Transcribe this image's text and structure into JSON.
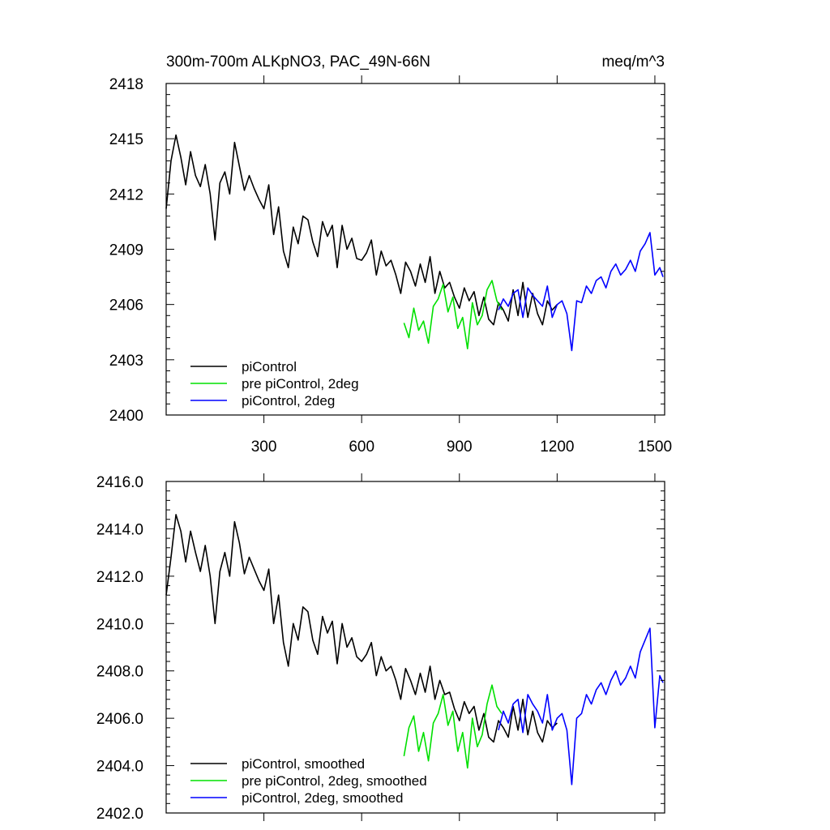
{
  "chart_data": [
    {
      "type": "line",
      "title_left": "300m-700m ALKpNO3, PAC_49N-66N",
      "title_right": "meq/m^3",
      "xlim": [
        0,
        1530
      ],
      "ylim": [
        2400,
        2418
      ],
      "x_ticks": [
        300,
        600,
        900,
        1200,
        1500
      ],
      "x_tick_labels": [
        "300",
        "600",
        "900",
        "1200",
        "1500"
      ],
      "y_ticks": [
        2400,
        2403,
        2406,
        2409,
        2412,
        2415,
        2418
      ],
      "y_tick_labels": [
        "2400",
        "2403",
        "2406",
        "2409",
        "2412",
        "2415",
        "2418"
      ],
      "legend_position": "bottom-left",
      "series": [
        {
          "name": "piControl",
          "color": "#000000",
          "x": [
            0,
            15,
            30,
            45,
            60,
            75,
            90,
            105,
            120,
            135,
            150,
            165,
            180,
            195,
            210,
            225,
            240,
            255,
            270,
            285,
            300,
            315,
            330,
            345,
            360,
            375,
            390,
            405,
            420,
            435,
            450,
            465,
            480,
            495,
            510,
            525,
            540,
            555,
            570,
            585,
            600,
            615,
            630,
            645,
            660,
            675,
            690,
            705,
            720,
            735,
            750,
            765,
            780,
            795,
            810,
            825,
            840,
            855,
            870,
            885,
            900,
            915,
            930,
            945,
            960,
            975,
            990,
            1005,
            1020,
            1035,
            1050,
            1065,
            1080,
            1095,
            1110,
            1125,
            1140,
            1155,
            1170,
            1185,
            1200
          ],
          "y": [
            2411.2,
            2413.8,
            2415.2,
            2414.0,
            2412.5,
            2414.3,
            2413.0,
            2412.4,
            2413.6,
            2412.0,
            2409.5,
            2412.6,
            2413.2,
            2412.0,
            2414.8,
            2413.5,
            2412.2,
            2413.0,
            2412.3,
            2411.7,
            2411.2,
            2412.5,
            2409.8,
            2411.3,
            2408.9,
            2408.0,
            2410.2,
            2409.3,
            2410.8,
            2410.6,
            2409.4,
            2408.6,
            2410.5,
            2409.7,
            2410.3,
            2408.0,
            2410.3,
            2409.0,
            2409.6,
            2408.5,
            2408.4,
            2408.8,
            2409.5,
            2407.6,
            2408.9,
            2408.1,
            2408.4,
            2407.6,
            2406.6,
            2408.3,
            2407.8,
            2407.0,
            2408.2,
            2407.2,
            2408.6,
            2406.6,
            2407.8,
            2406.9,
            2407.2,
            2406.4,
            2405.8,
            2406.9,
            2406.2,
            2406.7,
            2405.4,
            2406.4,
            2405.2,
            2404.9,
            2406.1,
            2405.7,
            2405.1,
            2406.8,
            2405.4,
            2407.2,
            2405.3,
            2406.6,
            2405.5,
            2404.9,
            2406.2,
            2405.7,
            2406.0
          ]
        },
        {
          "name": "pre piControl, 2deg",
          "color": "#00e000",
          "x": [
            730,
            745,
            760,
            775,
            790,
            805,
            820,
            835,
            850,
            865,
            880,
            895,
            910,
            925,
            940,
            955,
            970,
            985,
            1000,
            1015,
            1030
          ],
          "y": [
            2405.0,
            2404.2,
            2405.8,
            2404.6,
            2405.1,
            2403.9,
            2405.9,
            2406.3,
            2407.1,
            2405.6,
            2406.4,
            2404.7,
            2405.3,
            2403.6,
            2406.1,
            2404.9,
            2405.4,
            2406.8,
            2407.3,
            2406.2,
            2405.7
          ]
        },
        {
          "name": "piControl, 2deg",
          "color": "#0000ff",
          "x": [
            1020,
            1035,
            1050,
            1065,
            1080,
            1095,
            1110,
            1125,
            1140,
            1155,
            1170,
            1185,
            1200,
            1215,
            1230,
            1245,
            1260,
            1275,
            1290,
            1305,
            1320,
            1335,
            1350,
            1365,
            1380,
            1395,
            1410,
            1425,
            1440,
            1455,
            1470,
            1485,
            1500,
            1515,
            1525
          ],
          "y": [
            2405.7,
            2406.3,
            2405.9,
            2406.6,
            2406.8,
            2405.3,
            2406.9,
            2406.5,
            2406.2,
            2405.9,
            2407.0,
            2405.3,
            2406.0,
            2406.2,
            2405.5,
            2403.5,
            2406.2,
            2406.1,
            2407.0,
            2406.6,
            2407.3,
            2407.5,
            2406.9,
            2407.8,
            2408.2,
            2407.6,
            2407.9,
            2408.4,
            2407.8,
            2408.9,
            2409.3,
            2409.9,
            2407.6,
            2408.0,
            2407.5
          ]
        }
      ]
    },
    {
      "type": "line",
      "xlim": [
        0,
        1530
      ],
      "ylim": [
        2402.0,
        2416.0
      ],
      "x_ticks": [
        300,
        600,
        900,
        1200,
        1500
      ],
      "y_ticks": [
        2402.0,
        2404.0,
        2406.0,
        2408.0,
        2410.0,
        2412.0,
        2414.0,
        2416.0
      ],
      "y_tick_labels": [
        "2402.0",
        "2404.0",
        "2406.0",
        "2408.0",
        "2410.0",
        "2412.0",
        "2414.0",
        "2416.0"
      ],
      "legend_position": "bottom-left",
      "series": [
        {
          "name": "piControl, smoothed",
          "color": "#000000",
          "x": [
            0,
            15,
            30,
            45,
            60,
            75,
            90,
            105,
            120,
            135,
            150,
            165,
            180,
            195,
            210,
            225,
            240,
            255,
            270,
            285,
            300,
            315,
            330,
            345,
            360,
            375,
            390,
            405,
            420,
            435,
            450,
            465,
            480,
            495,
            510,
            525,
            540,
            555,
            570,
            585,
            600,
            615,
            630,
            645,
            660,
            675,
            690,
            705,
            720,
            735,
            750,
            765,
            780,
            795,
            810,
            825,
            840,
            855,
            870,
            885,
            900,
            915,
            930,
            945,
            960,
            975,
            990,
            1005,
            1020,
            1035,
            1050,
            1065,
            1080,
            1095,
            1110,
            1125,
            1140,
            1155,
            1170,
            1185,
            1200
          ],
          "y": [
            2411.2,
            2412.8,
            2414.6,
            2413.9,
            2412.6,
            2413.9,
            2413.0,
            2412.2,
            2413.3,
            2412.0,
            2410.0,
            2412.2,
            2413.0,
            2412.0,
            2414.3,
            2413.4,
            2412.1,
            2412.8,
            2412.3,
            2411.8,
            2411.4,
            2412.3,
            2410.0,
            2411.2,
            2409.2,
            2408.2,
            2410.0,
            2409.3,
            2410.7,
            2410.5,
            2409.3,
            2408.7,
            2410.3,
            2409.6,
            2410.1,
            2408.3,
            2410.0,
            2409.0,
            2409.4,
            2408.6,
            2408.4,
            2408.7,
            2409.2,
            2407.8,
            2408.6,
            2408.0,
            2408.2,
            2407.6,
            2406.8,
            2408.1,
            2407.6,
            2407.0,
            2407.9,
            2407.1,
            2408.2,
            2406.8,
            2407.6,
            2407.0,
            2407.1,
            2406.4,
            2405.9,
            2406.7,
            2406.2,
            2406.5,
            2405.5,
            2406.2,
            2405.2,
            2405.0,
            2405.9,
            2405.6,
            2405.2,
            2406.5,
            2405.5,
            2406.8,
            2405.3,
            2406.3,
            2405.4,
            2405.0,
            2405.9,
            2405.6,
            2405.8
          ]
        },
        {
          "name": "pre piControl, 2deg, smoothed",
          "color": "#00e000",
          "x": [
            730,
            745,
            760,
            775,
            790,
            805,
            820,
            835,
            850,
            865,
            880,
            895,
            910,
            925,
            940,
            955,
            970,
            985,
            1000,
            1015,
            1030
          ],
          "y": [
            2404.4,
            2405.6,
            2406.1,
            2404.6,
            2405.4,
            2404.2,
            2405.8,
            2406.2,
            2407.0,
            2405.7,
            2406.3,
            2404.6,
            2405.4,
            2403.9,
            2406.0,
            2404.8,
            2405.3,
            2406.6,
            2407.4,
            2406.5,
            2406.2
          ]
        },
        {
          "name": "piControl, 2deg, smoothed",
          "color": "#0000ff",
          "x": [
            1020,
            1035,
            1050,
            1065,
            1080,
            1095,
            1110,
            1125,
            1140,
            1155,
            1170,
            1185,
            1200,
            1215,
            1230,
            1245,
            1260,
            1275,
            1290,
            1305,
            1320,
            1335,
            1350,
            1365,
            1380,
            1395,
            1410,
            1425,
            1440,
            1455,
            1470,
            1485,
            1500,
            1515,
            1525
          ],
          "y": [
            2405.5,
            2406.3,
            2405.8,
            2406.6,
            2406.8,
            2405.4,
            2407.0,
            2406.6,
            2406.3,
            2405.8,
            2407.0,
            2405.5,
            2406.0,
            2406.2,
            2405.5,
            2403.2,
            2406.0,
            2406.2,
            2407.0,
            2406.6,
            2407.2,
            2407.5,
            2407.0,
            2407.6,
            2408.0,
            2407.4,
            2407.7,
            2408.2,
            2407.7,
            2408.8,
            2409.3,
            2409.8,
            2405.6,
            2407.8,
            2407.5
          ]
        }
      ]
    }
  ]
}
